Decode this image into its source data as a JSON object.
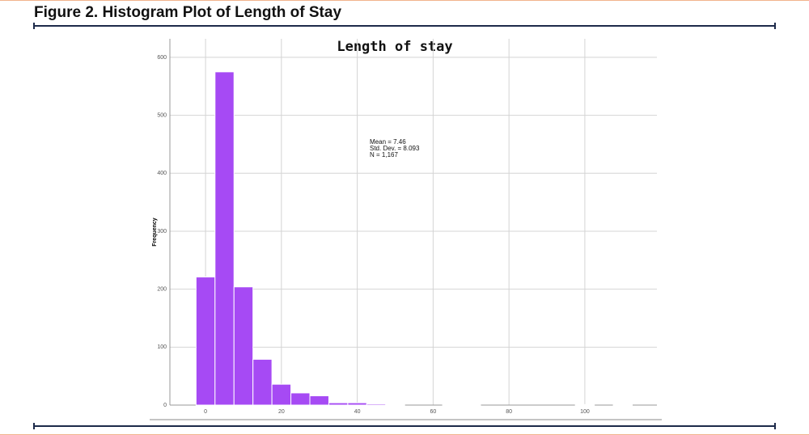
{
  "figure_title": "Figure 2. Histogram Plot of Length of Stay",
  "chart_data": {
    "type": "histogram",
    "title": "Length of stay",
    "y_label": "Frequency",
    "annotations": [
      "Mean = 7.46",
      "Std. Dev. = 8.093",
      "N = 1,167"
    ],
    "bins": [
      -2.5,
      2.5,
      7.5,
      12.5,
      17.5,
      22.5,
      27.5,
      32.5,
      37.5,
      42.5,
      47.5,
      52.5,
      57.5,
      62.5,
      67.5,
      72.5,
      77.5,
      82.5,
      87.5,
      92.5,
      97.5,
      102.5,
      107.5,
      112.5
    ],
    "counts": [
      221,
      575,
      204,
      79,
      36,
      21,
      16,
      4,
      4,
      2,
      1,
      0,
      0,
      1,
      1,
      0,
      0,
      0,
      0,
      0,
      1,
      0,
      1
    ],
    "color": "#a64af4",
    "xlim": [
      -9.4,
      119
    ],
    "xticks": [
      0,
      20,
      40,
      60,
      80,
      100
    ],
    "ylim": [
      0,
      632
    ],
    "yticks": [
      0,
      100,
      200,
      300,
      400,
      500,
      600
    ],
    "grid": true
  }
}
